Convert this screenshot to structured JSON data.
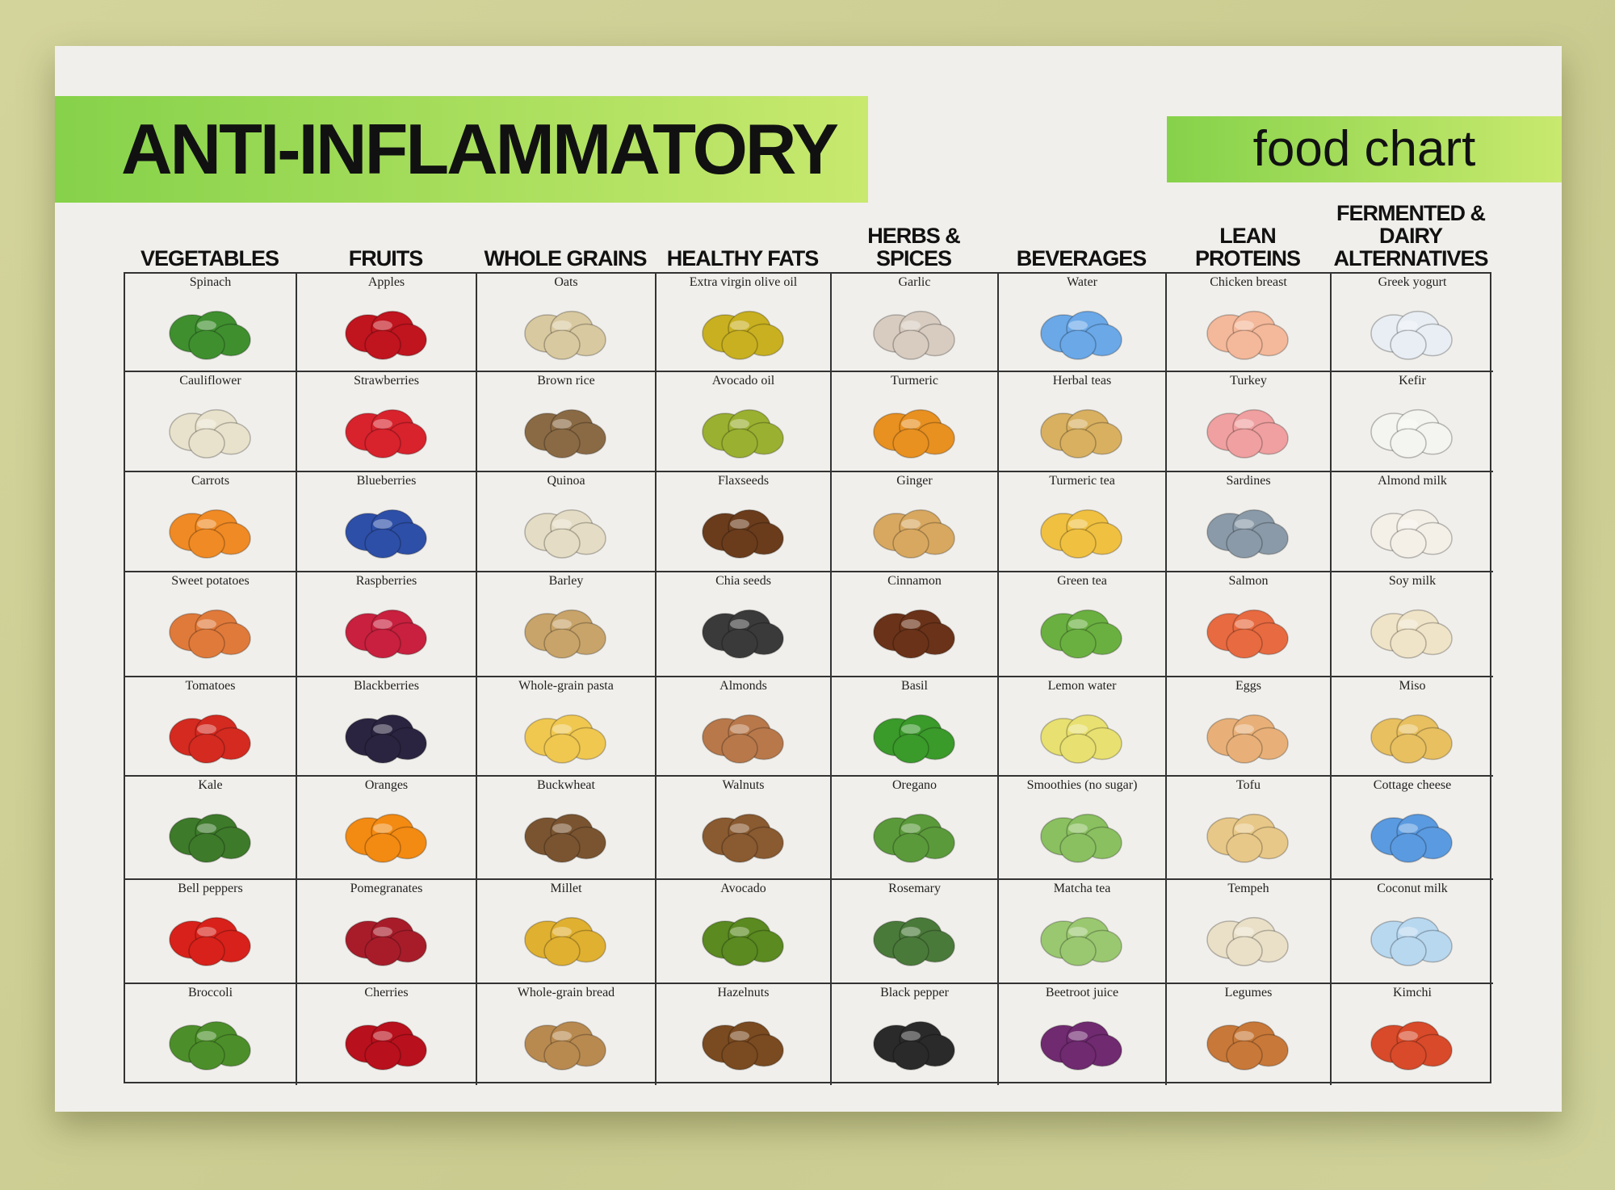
{
  "title": "ANTI-INFLAMMATORY",
  "subtitle": "food chart",
  "columns": [
    {
      "header": "VEGETABLES",
      "items": [
        "Spinach",
        "Cauliflower",
        "Carrots",
        "Sweet potatoes",
        "Tomatoes",
        "Kale",
        "Bell peppers",
        "Broccoli"
      ]
    },
    {
      "header": "FRUITS",
      "items": [
        "Apples",
        "Strawberries",
        "Blueberries",
        "Raspberries",
        "Blackberries",
        "Oranges",
        "Pomegranates",
        "Cherries"
      ]
    },
    {
      "header": "WHOLE GRAINS",
      "items": [
        "Oats",
        "Brown rice",
        "Quinoa",
        "Barley",
        "Whole-grain pasta",
        "Buckwheat",
        "Millet",
        "Whole-grain bread"
      ]
    },
    {
      "header": "HEALTHY FATS",
      "items": [
        "Extra virgin olive oil",
        "Avocado oil",
        "Flaxseeds",
        "Chia seeds",
        "Almonds",
        "Walnuts",
        "Avocado",
        "Hazelnuts"
      ]
    },
    {
      "header": "HERBS & SPICES",
      "items": [
        "Garlic",
        "Turmeric",
        "Ginger",
        "Cinnamon",
        "Basil",
        "Oregano",
        "Rosemary",
        "Black pepper"
      ]
    },
    {
      "header": "BEVERAGES",
      "items": [
        "Water",
        "Herbal teas",
        "Turmeric tea",
        "Green tea",
        "Lemon water",
        "Smoothies (no sugar)",
        "Matcha tea",
        "Beetroot juice"
      ]
    },
    {
      "header": "LEAN PROTEINS",
      "items": [
        "Chicken breast",
        "Turkey",
        "Sardines",
        "Salmon",
        "Eggs",
        "Tofu",
        "Tempeh",
        "Legumes"
      ]
    },
    {
      "header": "FERMENTED & DAIRY ALTERNATIVES",
      "items": [
        "Greek yogurt",
        "Kefir",
        "Almond milk",
        "Soy milk",
        "Miso",
        "Cottage cheese",
        "Coconut milk",
        "Kimchi"
      ]
    }
  ]
}
